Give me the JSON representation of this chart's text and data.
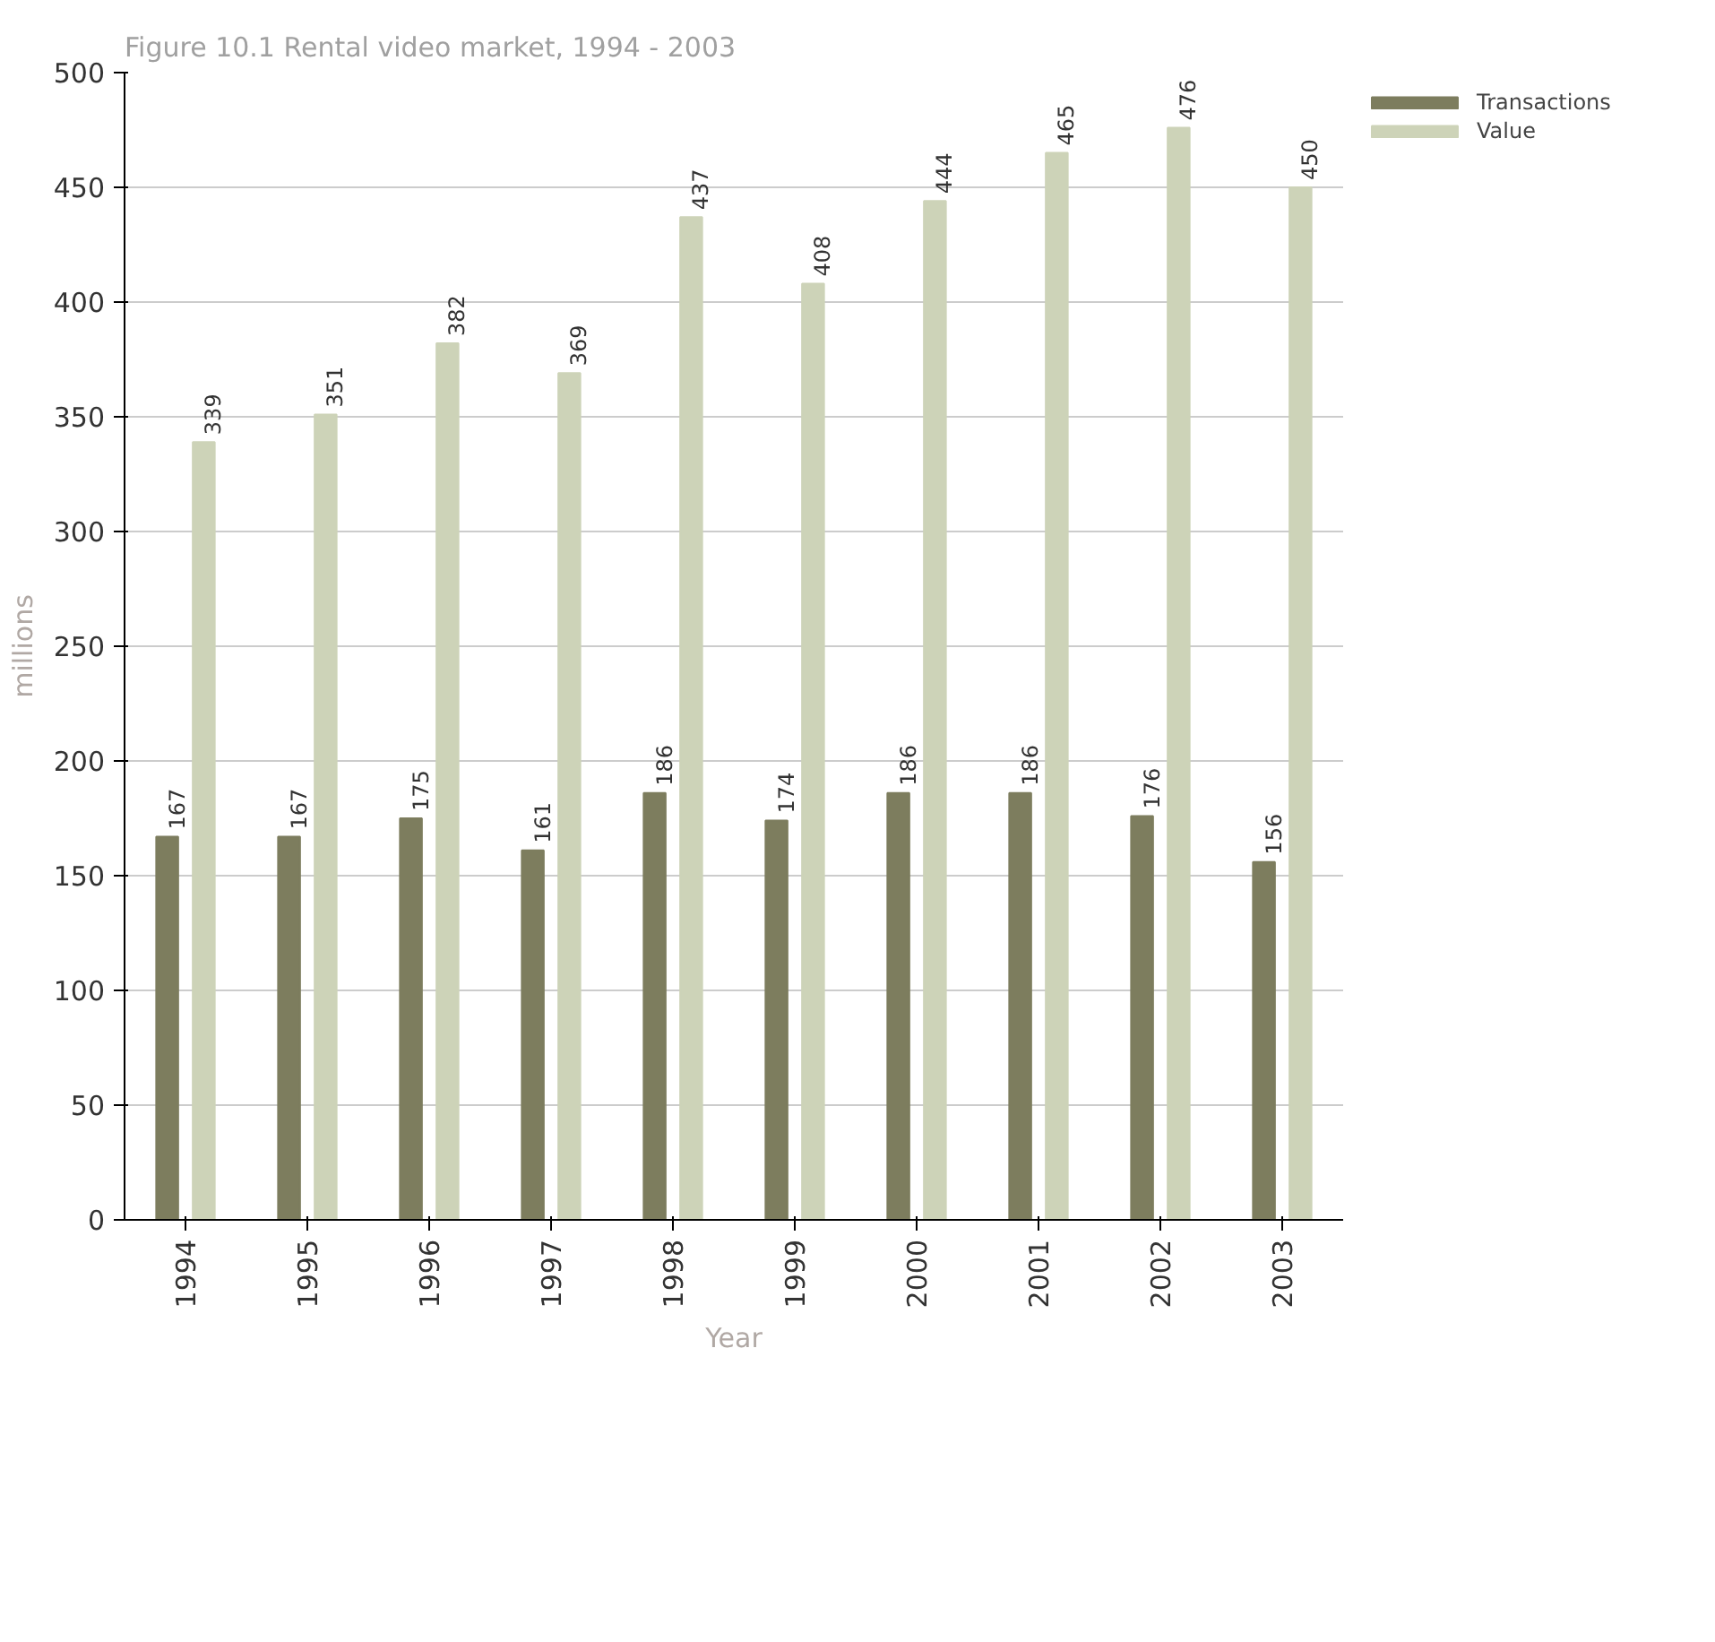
{
  "chart_data": {
    "type": "bar",
    "title": "Figure 10.1 Rental video market, 1994 - 2003",
    "xlabel": "Year",
    "ylabel": "millions",
    "categories": [
      "1994",
      "1995",
      "1996",
      "1997",
      "1998",
      "1999",
      "2000",
      "2001",
      "2002",
      "2003"
    ],
    "series": [
      {
        "name": "Transactions",
        "color": "#7d7d5e",
        "values": [
          167,
          167,
          175,
          161,
          186,
          174,
          186,
          186,
          176,
          156
        ]
      },
      {
        "name": "Value",
        "color": "#cdd3b8",
        "values": [
          339,
          351,
          382,
          369,
          437,
          408,
          444,
          465,
          476,
          450
        ]
      }
    ],
    "ylim": [
      0,
      500
    ],
    "yticks": [
      0,
      50,
      100,
      150,
      200,
      250,
      300,
      350,
      400,
      450,
      500
    ],
    "grid": "y",
    "legend": "top right",
    "data_labels": true
  }
}
